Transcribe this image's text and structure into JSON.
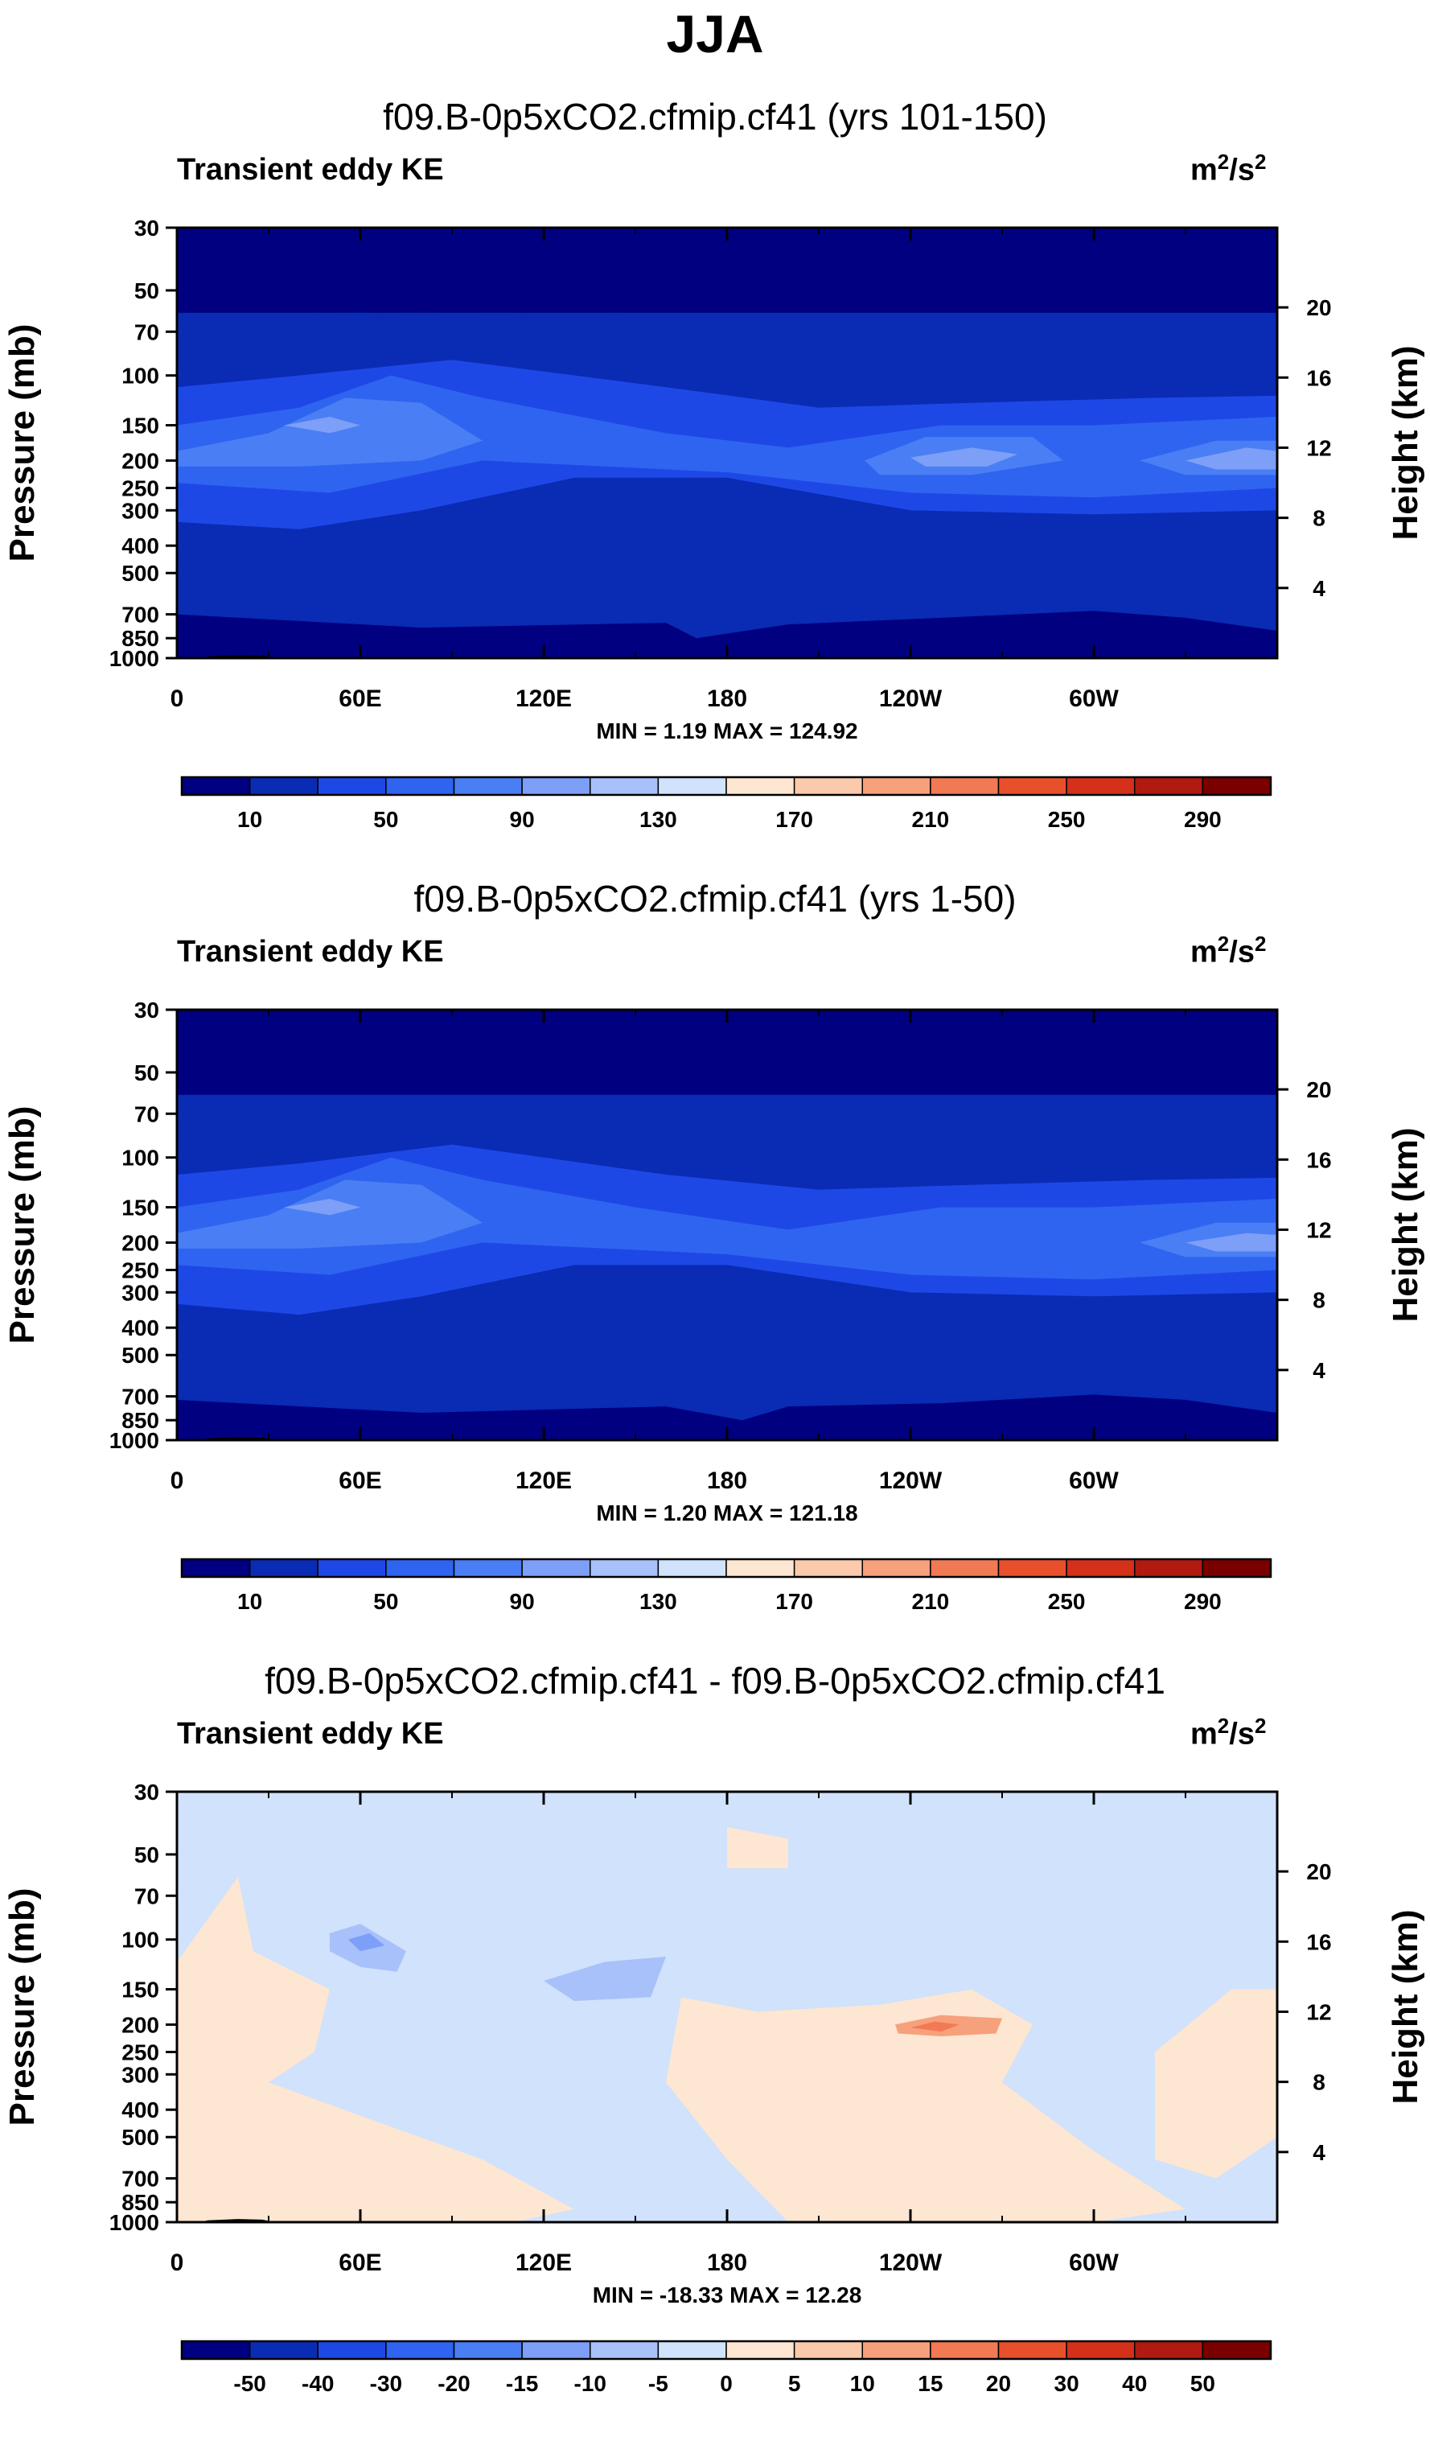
{
  "page_title": "JJA",
  "chart_data": [
    {
      "type": "heatmap",
      "title": "f09.B-0p5xCO2.cfmip.cf41 (yrs 101-150)",
      "variable": "Transient eddy KE",
      "units": "m2/s2",
      "units_base": "m",
      "units_exp": "2",
      "units_base2": "/s",
      "units_exp2": "2",
      "ylabel": "Pressure (mb)",
      "ylabel_right": "Height (km)",
      "x_ticks": [
        "0",
        "60E",
        "120E",
        "180",
        "120W",
        "60W"
      ],
      "y_ticks": [
        "30",
        "50",
        "70",
        "100",
        "150",
        "200",
        "250",
        "300",
        "400",
        "500",
        "700",
        "850",
        "1000"
      ],
      "y_ticks_right": [
        "20",
        "16",
        "12",
        "8",
        "4"
      ],
      "min_label": "MIN =   1.19",
      "max_label": "MAX = 124.92",
      "min": 1.19,
      "max": 124.92,
      "colorbar": {
        "labels": [
          "10",
          "50",
          "90",
          "130",
          "170",
          "210",
          "250",
          "290"
        ],
        "colors": [
          "#000080",
          "#0a2bb4",
          "#1e48e6",
          "#2f64f0",
          "#4a7ef4",
          "#7d9ff7",
          "#a9c1fa",
          "#d0e2fc",
          "#fde6d2",
          "#fbc9ab",
          "#f7a07c",
          "#f17a54",
          "#e8502c",
          "#d4301a",
          "#b01a10",
          "#7a0000"
        ]
      }
    },
    {
      "type": "heatmap",
      "title": "f09.B-0p5xCO2.cfmip.cf41 (yrs 1-50)",
      "variable": "Transient eddy KE",
      "units": "m2/s2",
      "units_base": "m",
      "units_exp": "2",
      "units_base2": "/s",
      "units_exp2": "2",
      "ylabel": "Pressure (mb)",
      "ylabel_right": "Height (km)",
      "x_ticks": [
        "0",
        "60E",
        "120E",
        "180",
        "120W",
        "60W"
      ],
      "y_ticks": [
        "30",
        "50",
        "70",
        "100",
        "150",
        "200",
        "250",
        "300",
        "400",
        "500",
        "700",
        "850",
        "1000"
      ],
      "y_ticks_right": [
        "20",
        "16",
        "12",
        "8",
        "4"
      ],
      "min_label": "MIN =   1.20",
      "max_label": "MAX = 121.18",
      "min": 1.2,
      "max": 121.18,
      "colorbar": {
        "labels": [
          "10",
          "50",
          "90",
          "130",
          "170",
          "210",
          "250",
          "290"
        ],
        "colors": [
          "#000080",
          "#0a2bb4",
          "#1e48e6",
          "#2f64f0",
          "#4a7ef4",
          "#7d9ff7",
          "#a9c1fa",
          "#d0e2fc",
          "#fde6d2",
          "#fbc9ab",
          "#f7a07c",
          "#f17a54",
          "#e8502c",
          "#d4301a",
          "#b01a10",
          "#7a0000"
        ]
      }
    },
    {
      "type": "heatmap",
      "title": "f09.B-0p5xCO2.cfmip.cf41 - f09.B-0p5xCO2.cfmip.cf41",
      "variable": "Transient eddy KE",
      "units": "m2/s2",
      "units_base": "m",
      "units_exp": "2",
      "units_base2": "/s",
      "units_exp2": "2",
      "ylabel": "Pressure (mb)",
      "ylabel_right": "Height (km)",
      "x_ticks": [
        "0",
        "60E",
        "120E",
        "180",
        "120W",
        "60W"
      ],
      "y_ticks": [
        "30",
        "50",
        "70",
        "100",
        "150",
        "200",
        "250",
        "300",
        "400",
        "500",
        "700",
        "850",
        "1000"
      ],
      "y_ticks_right": [
        "20",
        "16",
        "12",
        "8",
        "4"
      ],
      "min_label": "MIN = -18.33",
      "max_label": "MAX =  12.28",
      "min": -18.33,
      "max": 12.28,
      "colorbar": {
        "labels": [
          "-50",
          "-40",
          "-30",
          "-20",
          "-15",
          "-10",
          "-5",
          "0",
          "5",
          "10",
          "15",
          "20",
          "30",
          "40",
          "50"
        ],
        "colors": [
          "#000080",
          "#0a2bb4",
          "#1e48e6",
          "#2f64f0",
          "#4a7ef4",
          "#7d9ff7",
          "#a9c1fa",
          "#d0e2fc",
          "#fde6d2",
          "#fbc9ab",
          "#f7a07c",
          "#f17a54",
          "#e8502c",
          "#d4301a",
          "#b01a10",
          "#7a0000"
        ]
      }
    }
  ]
}
